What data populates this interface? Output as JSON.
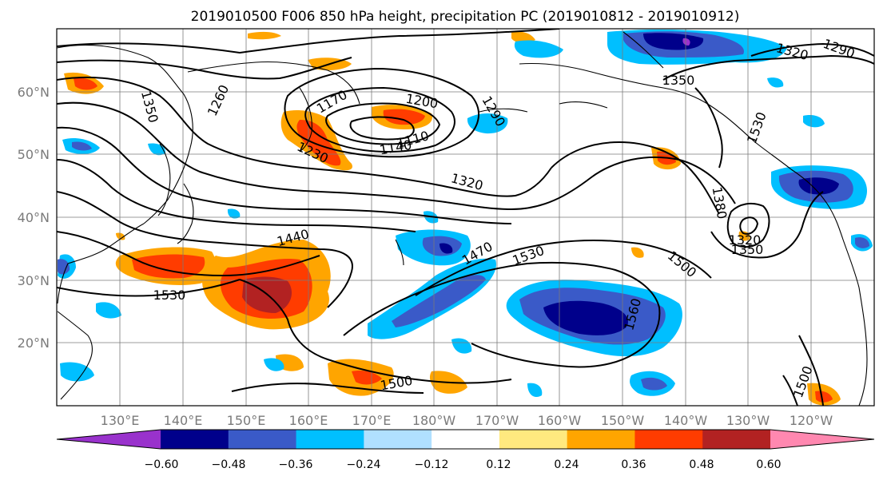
{
  "title": "2019010500 F006 850 hPa height, precipitation PC (2019010812 - 2019010912)",
  "map": {
    "lon_ticks": [
      "130°E",
      "140°E",
      "150°E",
      "160°E",
      "170°E",
      "180°W",
      "170°W",
      "160°W",
      "150°W",
      "140°W",
      "130°W",
      "120°W"
    ],
    "lat_ticks": [
      "60°N",
      "50°N",
      "40°N",
      "30°N",
      "20°N"
    ],
    "height_contour_labels": [
      "1350",
      "1260",
      "1170",
      "1200",
      "1290",
      "1110",
      "1140",
      "1230",
      "1320",
      "1320",
      "1290",
      "1350",
      "1380",
      "1470",
      "1440",
      "1530",
      "1530",
      "1500",
      "1560",
      "1350",
      "1320",
      "1500",
      "1500",
      "1530"
    ],
    "colorbar": {
      "ticks": [
        "−0.60",
        "−0.48",
        "−0.36",
        "−0.24",
        "−0.12",
        "0.12",
        "0.24",
        "0.36",
        "0.48",
        "0.60"
      ],
      "colors": [
        "#9932cc",
        "#00008b",
        "#3a5ac8",
        "#00bfff",
        "#b0e0ff",
        "#ffffff",
        "#ffe97f",
        "#ffa500",
        "#ff3c00",
        "#b22222",
        "#ff88b0"
      ]
    }
  }
}
